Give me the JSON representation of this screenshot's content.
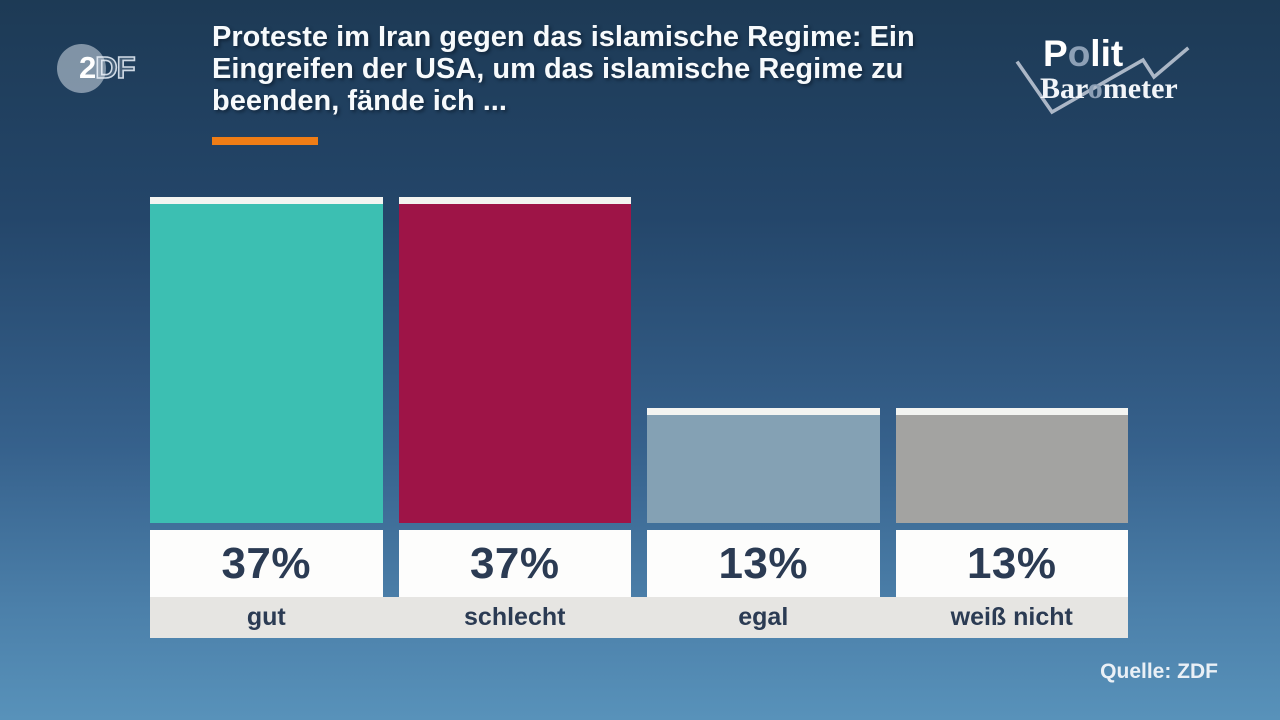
{
  "header": {
    "title_lines": [
      "Proteste im Iran gegen das islamische Regime: Ein",
      "Eingreifen der USA, um das islamische Regime zu",
      "beenden, fände ich ..."
    ],
    "accent_color": "#ef7d16"
  },
  "zdf": {
    "solid": "2",
    "outline": "DF"
  },
  "brand": {
    "polit_parts": [
      "P",
      "o",
      "lit"
    ],
    "barometer_parts": [
      "Bar",
      "o",
      "meter"
    ],
    "gray_letter_color": "#8da0b6"
  },
  "chart_data": {
    "type": "bar",
    "title": "Proteste im Iran gegen das islamische Regime: Ein Eingreifen der USA, um das islamische Regime zu beenden, fände ich ...",
    "categories": [
      "gut",
      "schlecht",
      "egal",
      "weiß nicht"
    ],
    "values": [
      37,
      37,
      13,
      13
    ],
    "value_labels": [
      "37%",
      "37%",
      "13%",
      "13%"
    ],
    "unit": "%",
    "bar_colors": [
      "#3cbfb2",
      "#9e1447",
      "#84a1b4",
      "#a3a3a1"
    ],
    "ylim": [
      0,
      37
    ],
    "legend": "none",
    "grid": false
  },
  "footer": {
    "source": "Quelle: ZDF"
  }
}
